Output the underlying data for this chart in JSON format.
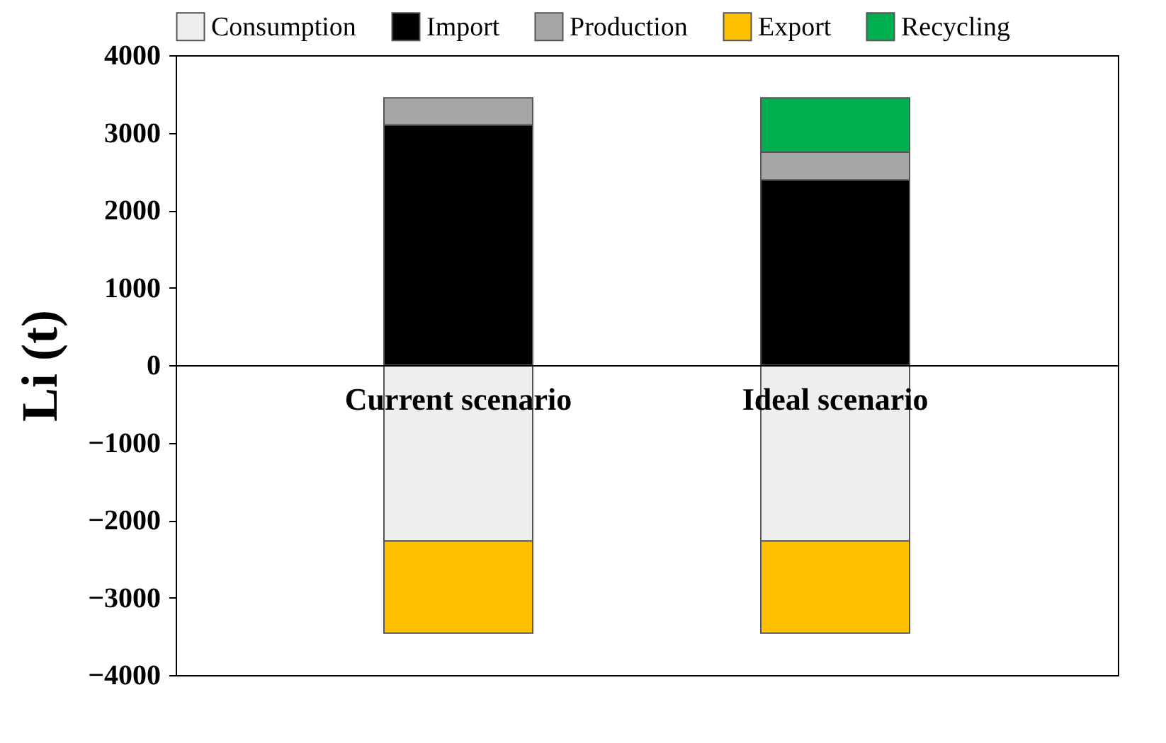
{
  "chart_data": {
    "type": "bar",
    "stacked": true,
    "ylabel": "Li (t)",
    "categories": [
      "Current scenario",
      "Ideal scenario"
    ],
    "series": [
      {
        "name": "Consumption",
        "color": "#eeeeee",
        "values": [
          -2270,
          -2270
        ]
      },
      {
        "name": "Import",
        "color": "#000000",
        "values": [
          3100,
          2390
        ]
      },
      {
        "name": "Production",
        "color": "#a6a6a6",
        "values": [
          350,
          360
        ]
      },
      {
        "name": "Export",
        "color": "#ffc000",
        "values": [
          -1190,
          -1190
        ]
      },
      {
        "name": "Recycling",
        "color": "#00b050",
        "values": [
          null,
          700
        ]
      }
    ],
    "ylim": [
      -4000,
      4000
    ],
    "yticks": [
      -4000,
      -3000,
      -2000,
      -1000,
      0,
      1000,
      2000,
      3000,
      4000
    ],
    "grid": false,
    "legend": "top"
  }
}
